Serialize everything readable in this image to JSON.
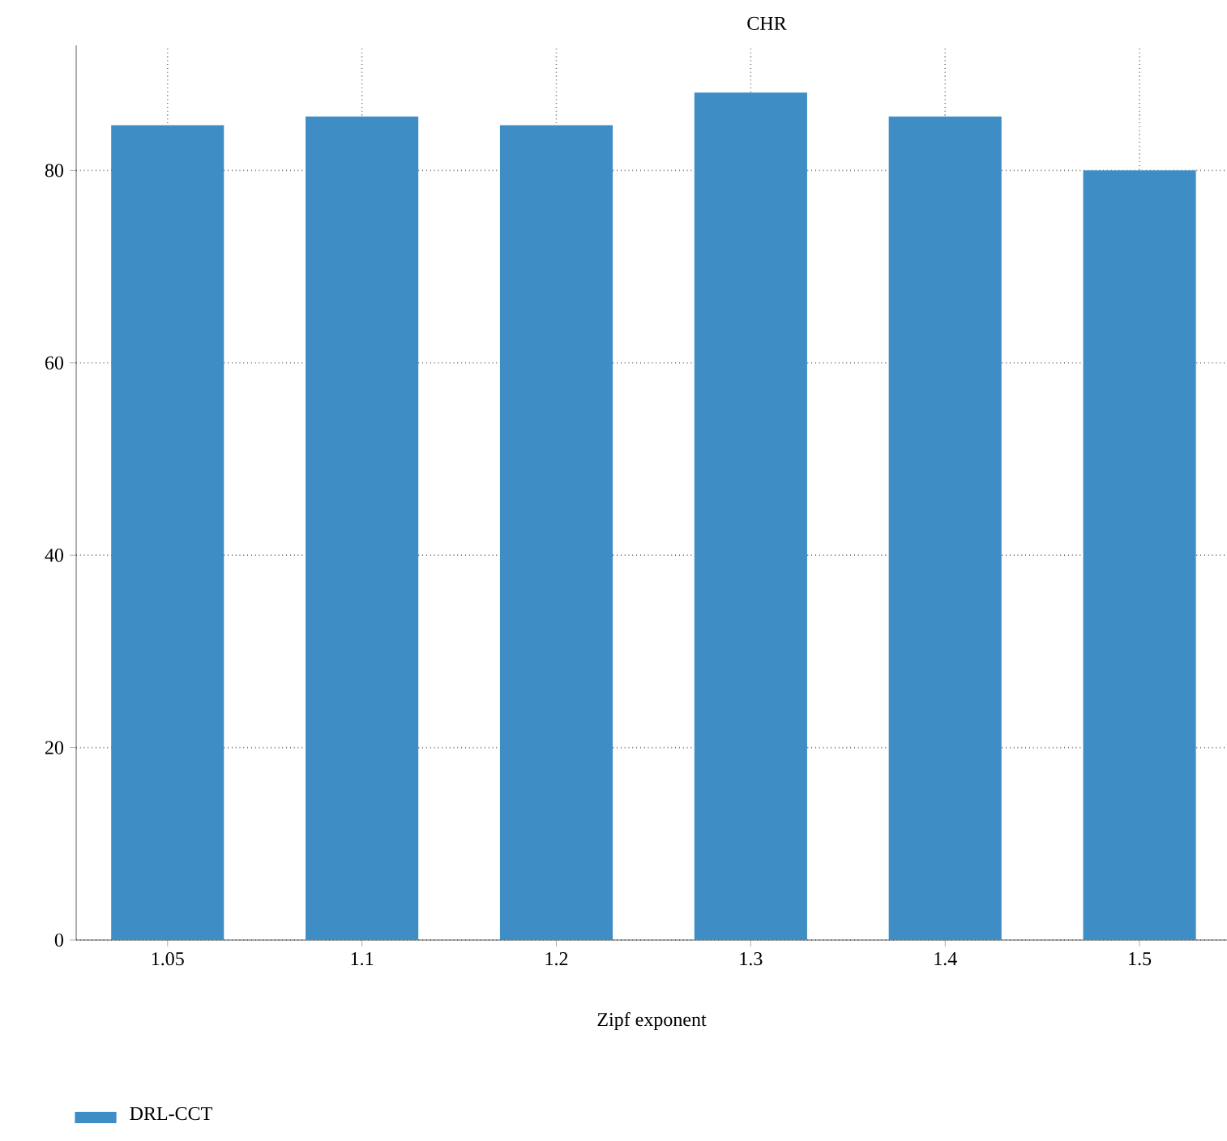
{
  "chart_data": {
    "type": "bar",
    "title": "CHR",
    "xlabel": "Zipf exponent",
    "categories": [
      "1.05",
      "1.1",
      "1.2",
      "1.3",
      "1.4",
      "1.5"
    ],
    "series": [
      {
        "name": "DRL-CCT",
        "color": "#3f8dc5",
        "values": [
          84.7,
          85.6,
          84.7,
          88.1,
          85.6,
          80.0
        ]
      }
    ],
    "ylim": [
      0,
      93
    ],
    "yticks": [
      0,
      20,
      40,
      60,
      80
    ],
    "grid": true,
    "legend": "bottom left"
  }
}
